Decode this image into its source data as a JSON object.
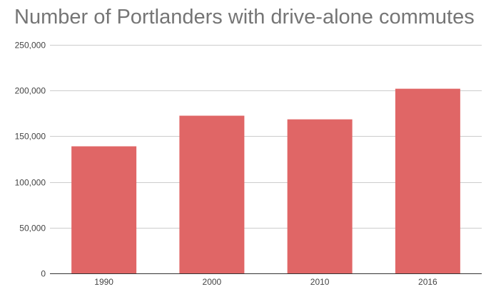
{
  "chart_data": {
    "type": "bar",
    "title": "Number of Portlanders with drive-alone commutes",
    "xlabel": "",
    "ylabel": "",
    "categories": [
      "1990",
      "2000",
      "2010",
      "2016"
    ],
    "values": [
      139000,
      172500,
      168500,
      202000
    ],
    "ylim": [
      0,
      250000
    ],
    "yticks": [
      0,
      50000,
      100000,
      150000,
      200000,
      250000
    ],
    "ytick_labels": [
      "0",
      "50,000",
      "100,000",
      "150,000",
      "200,000",
      "250,000"
    ],
    "grid": true,
    "legend": "none",
    "colors": {
      "bar": "#e06666",
      "grid": "#cccccc",
      "axis": "#333333",
      "title": "#757575",
      "tick_text": "#444444"
    }
  }
}
